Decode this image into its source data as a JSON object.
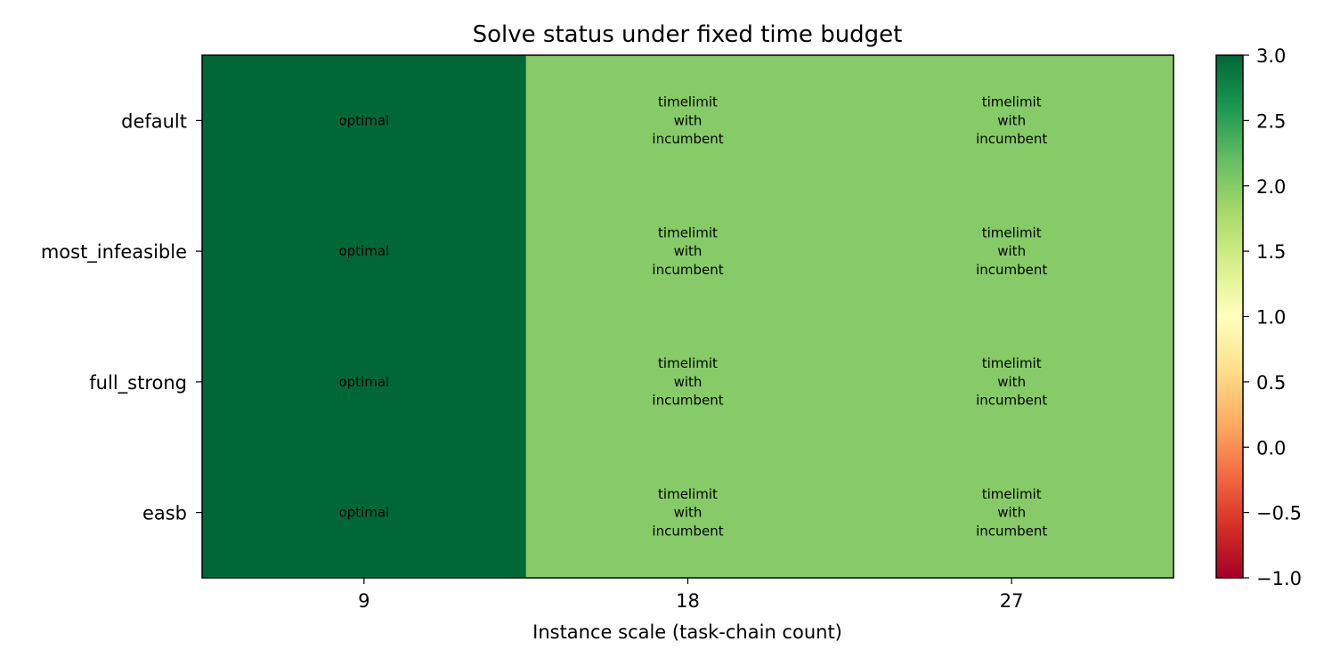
{
  "chart_data": {
    "type": "heatmap",
    "title": "Solve status under fixed time budget",
    "xlabel": "Instance scale (task-chain count)",
    "ylabel": "",
    "x_categories": [
      "9",
      "18",
      "27"
    ],
    "y_categories": [
      "default",
      "most_infeasible",
      "full_strong",
      "easb"
    ],
    "values": [
      [
        3,
        2,
        2
      ],
      [
        3,
        2,
        2
      ],
      [
        3,
        2,
        2
      ],
      [
        3,
        2,
        2
      ]
    ],
    "cell_labels": [
      [
        "optimal",
        "timelimit\nwith\nincumbent",
        "timelimit\nwith\nincumbent"
      ],
      [
        "optimal",
        "timelimit\nwith\nincumbent",
        "timelimit\nwith\nincumbent"
      ],
      [
        "optimal",
        "timelimit\nwith\nincumbent",
        "timelimit\nwith\nincumbent"
      ],
      [
        "optimal",
        "timelimit\nwith\nincumbent",
        "timelimit\nwith\nincumbent"
      ]
    ],
    "colormap": "RdYlGn",
    "vmin": -1.0,
    "vmax": 3.0,
    "colorbar_ticks": [
      -1.0,
      -0.5,
      0.0,
      0.5,
      1.0,
      1.5,
      2.0,
      2.5,
      3.0
    ],
    "colorbar_tick_labels": [
      "−1.0",
      "−0.5",
      "0.0",
      "0.5",
      "1.0",
      "1.5",
      "2.0",
      "2.5",
      "3.0"
    ],
    "colorbar_stops": [
      "#a50026",
      "#d73027",
      "#f46d43",
      "#fdae61",
      "#fee08b",
      "#ffffbf",
      "#d9ef8b",
      "#a6d96a",
      "#66bd63",
      "#1a9850",
      "#006837"
    ]
  }
}
